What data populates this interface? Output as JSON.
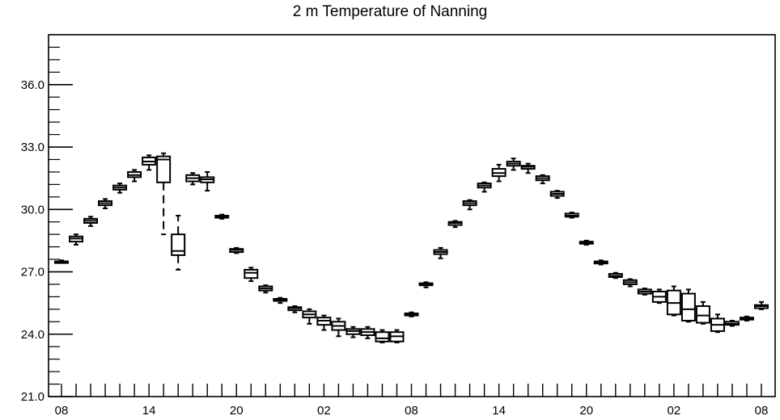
{
  "chart_data": {
    "type": "box",
    "title": "2 m Temperature of Nanning",
    "xlabel": "",
    "ylabel": "",
    "ylim": [
      21.0,
      38.4
    ],
    "yticks": [
      "21.0",
      "24.0",
      "27.0",
      "30.0",
      "33.0",
      "36.0"
    ],
    "xticks": [
      {
        "label": "08",
        "step": 0
      },
      {
        "label": "14",
        "step": 6
      },
      {
        "label": "20",
        "step": 12
      },
      {
        "label": "02",
        "step": 18
      },
      {
        "label": "08",
        "step": 24
      },
      {
        "label": "14",
        "step": 30
      },
      {
        "label": "20",
        "step": 36
      },
      {
        "label": "02",
        "step": 42
      },
      {
        "label": "08",
        "step": 48
      }
    ],
    "x_steps_total": 48,
    "boxes": [
      {
        "step": 0,
        "min": 27.45,
        "q1": 27.45,
        "median": 27.5,
        "q3": 27.5,
        "max": 27.55
      },
      {
        "step": 1,
        "min": 28.3,
        "q1": 28.45,
        "median": 28.6,
        "q3": 28.7,
        "max": 28.8
      },
      {
        "step": 2,
        "min": 29.2,
        "q1": 29.35,
        "median": 29.45,
        "q3": 29.55,
        "max": 29.65
      },
      {
        "step": 3,
        "min": 30.05,
        "q1": 30.2,
        "median": 30.3,
        "q3": 30.4,
        "max": 30.5
      },
      {
        "step": 4,
        "min": 30.8,
        "q1": 30.95,
        "median": 31.05,
        "q3": 31.15,
        "max": 31.25
      },
      {
        "step": 5,
        "min": 31.35,
        "q1": 31.55,
        "median": 31.65,
        "q3": 31.8,
        "max": 31.9
      },
      {
        "step": 6,
        "min": 31.9,
        "q1": 32.15,
        "median": 32.3,
        "q3": 32.5,
        "max": 32.6
      },
      {
        "step": 7,
        "min": 28.8,
        "q1": 31.3,
        "median": 32.4,
        "q3": 32.55,
        "max": 32.7
      },
      {
        "step": 8,
        "min": 27.1,
        "q1": 27.8,
        "median": 28.0,
        "q3": 28.8,
        "max": 29.7
      },
      {
        "step": 9,
        "min": 31.2,
        "q1": 31.35,
        "median": 31.5,
        "q3": 31.65,
        "max": 31.75
      },
      {
        "step": 10,
        "min": 30.9,
        "q1": 31.3,
        "median": 31.45,
        "q3": 31.55,
        "max": 31.8
      },
      {
        "step": 11,
        "min": 29.55,
        "q1": 29.6,
        "median": 29.65,
        "q3": 29.7,
        "max": 29.75
      },
      {
        "step": 12,
        "min": 27.9,
        "q1": 27.95,
        "median": 28.05,
        "q3": 28.1,
        "max": 28.15
      },
      {
        "step": 13,
        "min": 26.55,
        "q1": 26.7,
        "median": 26.95,
        "q3": 27.1,
        "max": 27.2
      },
      {
        "step": 14,
        "min": 26.0,
        "q1": 26.1,
        "median": 26.2,
        "q3": 26.3,
        "max": 26.35
      },
      {
        "step": 15,
        "min": 25.5,
        "q1": 25.6,
        "median": 25.65,
        "q3": 25.7,
        "max": 25.75
      },
      {
        "step": 16,
        "min": 25.05,
        "q1": 25.15,
        "median": 25.25,
        "q3": 25.3,
        "max": 25.35
      },
      {
        "step": 17,
        "min": 24.5,
        "q1": 24.8,
        "median": 24.95,
        "q3": 25.1,
        "max": 25.2
      },
      {
        "step": 18,
        "min": 24.2,
        "q1": 24.45,
        "median": 24.65,
        "q3": 24.8,
        "max": 24.9
      },
      {
        "step": 19,
        "min": 23.9,
        "q1": 24.2,
        "median": 24.4,
        "q3": 24.6,
        "max": 24.75
      },
      {
        "step": 20,
        "min": 23.85,
        "q1": 24.0,
        "median": 24.15,
        "q3": 24.25,
        "max": 24.35
      },
      {
        "step": 21,
        "min": 23.8,
        "q1": 23.95,
        "median": 24.1,
        "q3": 24.25,
        "max": 24.35
      },
      {
        "step": 22,
        "min": 23.6,
        "q1": 23.65,
        "median": 23.8,
        "q3": 24.1,
        "max": 24.2
      },
      {
        "step": 23,
        "min": 23.6,
        "q1": 23.65,
        "median": 23.9,
        "q3": 24.1,
        "max": 24.2
      },
      {
        "step": 24,
        "min": 24.85,
        "q1": 24.9,
        "median": 24.95,
        "q3": 25.0,
        "max": 25.05
      },
      {
        "step": 25,
        "min": 26.25,
        "q1": 26.35,
        "median": 26.4,
        "q3": 26.45,
        "max": 26.5
      },
      {
        "step": 26,
        "min": 27.65,
        "q1": 27.85,
        "median": 27.95,
        "q3": 28.05,
        "max": 28.15
      },
      {
        "step": 27,
        "min": 29.15,
        "q1": 29.25,
        "median": 29.35,
        "q3": 29.4,
        "max": 29.45
      },
      {
        "step": 28,
        "min": 30.0,
        "q1": 30.2,
        "median": 30.3,
        "q3": 30.4,
        "max": 30.45
      },
      {
        "step": 29,
        "min": 30.85,
        "q1": 31.05,
        "median": 31.15,
        "q3": 31.25,
        "max": 31.3
      },
      {
        "step": 30,
        "min": 31.35,
        "q1": 31.6,
        "median": 31.75,
        "q3": 31.95,
        "max": 32.15
      },
      {
        "step": 31,
        "min": 31.9,
        "q1": 32.1,
        "median": 32.2,
        "q3": 32.3,
        "max": 32.45
      },
      {
        "step": 32,
        "min": 31.75,
        "q1": 31.95,
        "median": 32.05,
        "q3": 32.1,
        "max": 32.2
      },
      {
        "step": 33,
        "min": 31.25,
        "q1": 31.4,
        "median": 31.5,
        "q3": 31.6,
        "max": 31.65
      },
      {
        "step": 34,
        "min": 30.55,
        "q1": 30.65,
        "median": 30.75,
        "q3": 30.85,
        "max": 30.9
      },
      {
        "step": 35,
        "min": 29.6,
        "q1": 29.65,
        "median": 29.7,
        "q3": 29.8,
        "max": 29.85
      },
      {
        "step": 36,
        "min": 28.3,
        "q1": 28.35,
        "median": 28.4,
        "q3": 28.45,
        "max": 28.5
      },
      {
        "step": 37,
        "min": 27.35,
        "q1": 27.4,
        "median": 27.45,
        "q3": 27.5,
        "max": 27.55
      },
      {
        "step": 38,
        "min": 26.7,
        "q1": 26.75,
        "median": 26.8,
        "q3": 26.9,
        "max": 26.95
      },
      {
        "step": 39,
        "min": 26.3,
        "q1": 26.4,
        "median": 26.5,
        "q3": 26.6,
        "max": 26.65
      },
      {
        "step": 40,
        "min": 25.9,
        "q1": 25.95,
        "median": 26.05,
        "q3": 26.15,
        "max": 26.2
      },
      {
        "step": 41,
        "min": 25.5,
        "q1": 25.55,
        "median": 25.8,
        "q3": 26.05,
        "max": 26.15
      },
      {
        "step": 42,
        "min": 24.9,
        "q1": 24.95,
        "median": 25.5,
        "q3": 26.1,
        "max": 26.3
      },
      {
        "step": 43,
        "min": 24.6,
        "q1": 24.65,
        "median": 25.2,
        "q3": 25.95,
        "max": 26.15
      },
      {
        "step": 44,
        "min": 24.5,
        "q1": 24.55,
        "median": 24.9,
        "q3": 25.35,
        "max": 25.55
      },
      {
        "step": 45,
        "min": 24.1,
        "q1": 24.15,
        "median": 24.45,
        "q3": 24.75,
        "max": 24.95
      },
      {
        "step": 46,
        "min": 24.4,
        "q1": 24.45,
        "median": 24.5,
        "q3": 24.6,
        "max": 24.65
      },
      {
        "step": 47,
        "min": 24.65,
        "q1": 24.7,
        "median": 24.75,
        "q3": 24.8,
        "max": 24.85
      },
      {
        "step": 48,
        "min": 25.2,
        "q1": 25.25,
        "median": 25.35,
        "q3": 25.4,
        "max": 25.55
      }
    ]
  }
}
